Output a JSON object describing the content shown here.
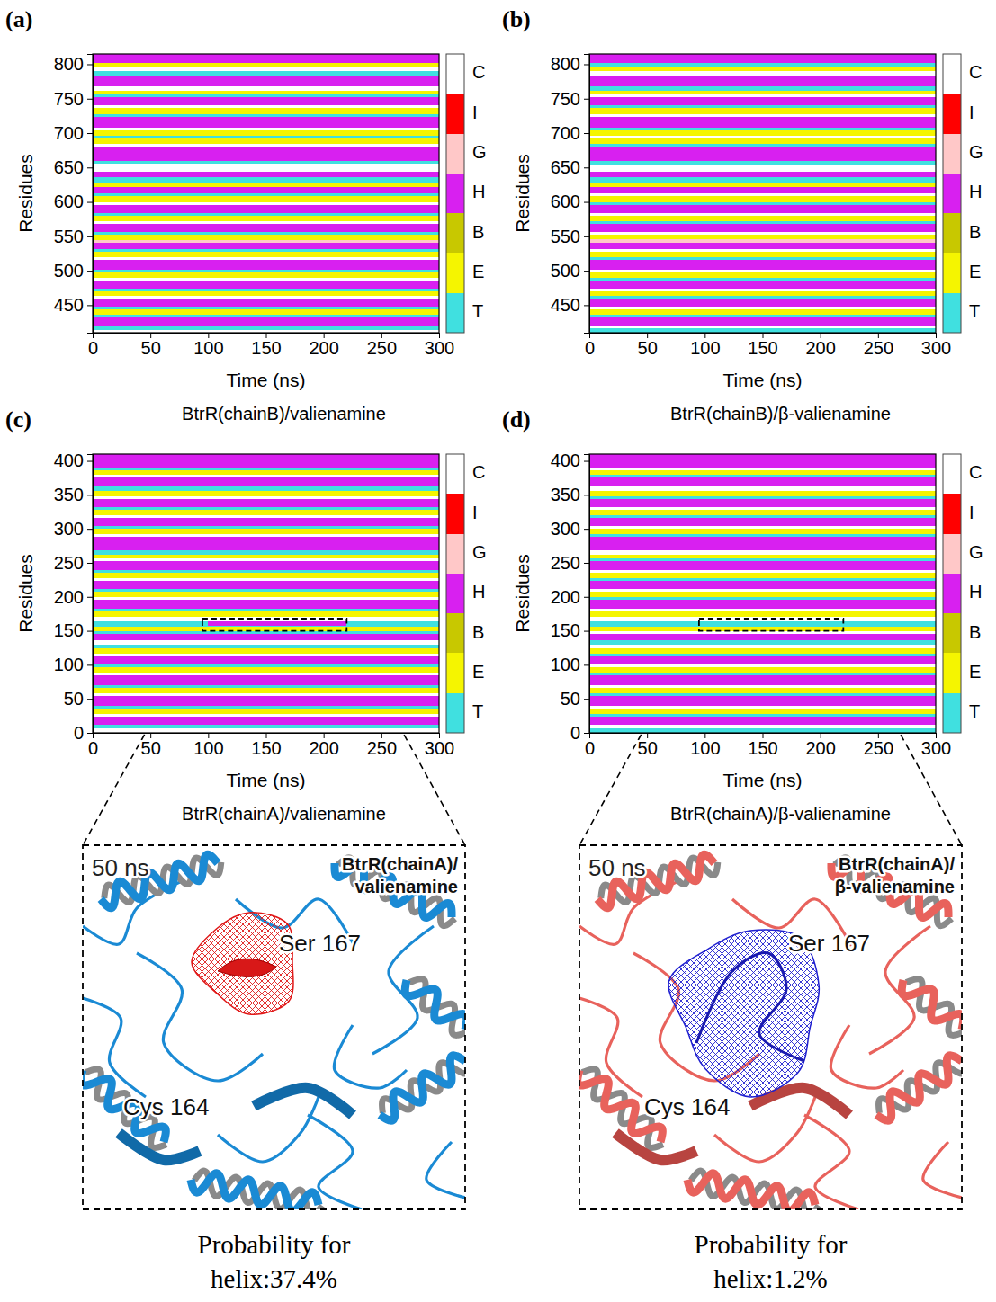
{
  "chart_data": [
    {
      "type": "heatmap",
      "panel": "(a)",
      "title": "BtrR(chainB)/valienamine",
      "x_label": "Time (ns)",
      "y_label": "Residues",
      "xlim": [
        0,
        300
      ],
      "xticks": [
        0,
        50,
        100,
        150,
        200,
        250,
        300
      ],
      "ylim": [
        410,
        815
      ],
      "yticks": [
        450,
        500,
        550,
        600,
        650,
        700,
        750,
        800
      ],
      "states": [
        "C",
        "I",
        "G",
        "H",
        "B",
        "E",
        "T"
      ],
      "colors": [
        "#ffffff",
        "#ff0000",
        "#ffc8c8",
        "#d820f0",
        "#c8c800",
        "#f5f500",
        "#40e0e0"
      ],
      "bands": [
        [
          410,
          414,
          "C"
        ],
        [
          414,
          420,
          "T"
        ],
        [
          420,
          432,
          "H"
        ],
        [
          432,
          436,
          "T"
        ],
        [
          436,
          444,
          "E"
        ],
        [
          444,
          448,
          "T"
        ],
        [
          448,
          460,
          "H"
        ],
        [
          460,
          464,
          "C"
        ],
        [
          464,
          470,
          "E"
        ],
        [
          470,
          474,
          "T"
        ],
        [
          474,
          486,
          "H"
        ],
        [
          486,
          490,
          "C"
        ],
        [
          490,
          498,
          "E"
        ],
        [
          498,
          502,
          "T"
        ],
        [
          502,
          516,
          "H"
        ],
        [
          516,
          520,
          "C"
        ],
        [
          520,
          528,
          "E"
        ],
        [
          528,
          532,
          "T"
        ],
        [
          532,
          540,
          "H"
        ],
        [
          540,
          544,
          "G"
        ],
        [
          544,
          552,
          "E"
        ],
        [
          552,
          556,
          "T"
        ],
        [
          556,
          568,
          "H"
        ],
        [
          568,
          572,
          "C"
        ],
        [
          572,
          580,
          "E"
        ],
        [
          580,
          584,
          "T"
        ],
        [
          584,
          596,
          "H"
        ],
        [
          596,
          600,
          "C"
        ],
        [
          600,
          608,
          "E"
        ],
        [
          608,
          612,
          "T"
        ],
        [
          612,
          622,
          "H"
        ],
        [
          622,
          628,
          "E"
        ],
        [
          628,
          636,
          "T"
        ],
        [
          636,
          644,
          "H"
        ],
        [
          644,
          656,
          "C"
        ],
        [
          656,
          660,
          "T"
        ],
        [
          660,
          680,
          "H"
        ],
        [
          680,
          684,
          "C"
        ],
        [
          684,
          692,
          "E"
        ],
        [
          692,
          696,
          "T"
        ],
        [
          696,
          704,
          "E"
        ],
        [
          704,
          708,
          "C"
        ],
        [
          708,
          724,
          "H"
        ],
        [
          724,
          728,
          "T"
        ],
        [
          728,
          736,
          "E"
        ],
        [
          736,
          740,
          "C"
        ],
        [
          740,
          752,
          "H"
        ],
        [
          752,
          756,
          "T"
        ],
        [
          756,
          762,
          "E"
        ],
        [
          762,
          768,
          "C"
        ],
        [
          768,
          784,
          "H"
        ],
        [
          784,
          790,
          "T"
        ],
        [
          790,
          796,
          "C"
        ],
        [
          796,
          802,
          "E"
        ],
        [
          802,
          815,
          "H"
        ]
      ],
      "events": []
    },
    {
      "type": "heatmap",
      "panel": "(b)",
      "title": "BtrR(chainB)/β-valienamine",
      "x_label": "Time (ns)",
      "y_label": "Residues",
      "xlim": [
        0,
        300
      ],
      "xticks": [
        0,
        50,
        100,
        150,
        200,
        250,
        300
      ],
      "ylim": [
        410,
        815
      ],
      "yticks": [
        450,
        500,
        550,
        600,
        650,
        700,
        750,
        800
      ],
      "states": [
        "C",
        "I",
        "G",
        "H",
        "B",
        "E",
        "T"
      ],
      "colors": [
        "#ffffff",
        "#ff0000",
        "#ffc8c8",
        "#d820f0",
        "#c8c800",
        "#f5f500",
        "#40e0e0"
      ],
      "bands": [
        [
          410,
          416,
          "T"
        ],
        [
          416,
          420,
          "C"
        ],
        [
          420,
          432,
          "H"
        ],
        [
          432,
          436,
          "T"
        ],
        [
          436,
          444,
          "E"
        ],
        [
          444,
          448,
          "C"
        ],
        [
          448,
          460,
          "H"
        ],
        [
          460,
          464,
          "T"
        ],
        [
          464,
          470,
          "E"
        ],
        [
          470,
          474,
          "C"
        ],
        [
          474,
          486,
          "H"
        ],
        [
          486,
          490,
          "T"
        ],
        [
          490,
          498,
          "E"
        ],
        [
          498,
          502,
          "C"
        ],
        [
          502,
          516,
          "H"
        ],
        [
          516,
          520,
          "T"
        ],
        [
          520,
          528,
          "E"
        ],
        [
          528,
          532,
          "C"
        ],
        [
          532,
          540,
          "H"
        ],
        [
          540,
          546,
          "G"
        ],
        [
          546,
          552,
          "E"
        ],
        [
          552,
          556,
          "C"
        ],
        [
          556,
          568,
          "H"
        ],
        [
          568,
          572,
          "T"
        ],
        [
          572,
          580,
          "E"
        ],
        [
          580,
          584,
          "C"
        ],
        [
          584,
          596,
          "H"
        ],
        [
          596,
          600,
          "T"
        ],
        [
          600,
          608,
          "E"
        ],
        [
          608,
          612,
          "C"
        ],
        [
          612,
          622,
          "H"
        ],
        [
          622,
          628,
          "E"
        ],
        [
          628,
          636,
          "T"
        ],
        [
          636,
          644,
          "H"
        ],
        [
          644,
          654,
          "C"
        ],
        [
          654,
          660,
          "T"
        ],
        [
          660,
          680,
          "H"
        ],
        [
          680,
          684,
          "T"
        ],
        [
          684,
          692,
          "E"
        ],
        [
          692,
          696,
          "C"
        ],
        [
          696,
          704,
          "E"
        ],
        [
          704,
          708,
          "T"
        ],
        [
          708,
          724,
          "H"
        ],
        [
          724,
          728,
          "C"
        ],
        [
          728,
          736,
          "E"
        ],
        [
          736,
          740,
          "T"
        ],
        [
          740,
          752,
          "H"
        ],
        [
          752,
          756,
          "C"
        ],
        [
          756,
          762,
          "E"
        ],
        [
          762,
          768,
          "T"
        ],
        [
          768,
          784,
          "H"
        ],
        [
          784,
          790,
          "C"
        ],
        [
          790,
          796,
          "E"
        ],
        [
          796,
          802,
          "T"
        ],
        [
          802,
          815,
          "H"
        ]
      ],
      "events": []
    },
    {
      "type": "heatmap",
      "panel": "(c)",
      "title": "BtrR(chainA)/valienamine",
      "x_label": "Time (ns)",
      "y_label": "Residues",
      "xlim": [
        0,
        300
      ],
      "xticks": [
        0,
        50,
        100,
        150,
        200,
        250,
        300
      ],
      "ylim": [
        0,
        410
      ],
      "yticks": [
        0,
        50,
        100,
        150,
        200,
        250,
        300,
        350,
        400
      ],
      "states": [
        "C",
        "I",
        "G",
        "H",
        "B",
        "E",
        "T"
      ],
      "colors": [
        "#ffffff",
        "#ff0000",
        "#ffc8c8",
        "#d820f0",
        "#c8c800",
        "#f5f500",
        "#40e0e0"
      ],
      "bands": [
        [
          0,
          6,
          "C"
        ],
        [
          6,
          12,
          "T"
        ],
        [
          12,
          24,
          "H"
        ],
        [
          24,
          28,
          "C"
        ],
        [
          28,
          36,
          "E"
        ],
        [
          36,
          40,
          "T"
        ],
        [
          40,
          54,
          "H"
        ],
        [
          54,
          58,
          "C"
        ],
        [
          58,
          66,
          "E"
        ],
        [
          66,
          70,
          "T"
        ],
        [
          70,
          84,
          "H"
        ],
        [
          84,
          88,
          "C"
        ],
        [
          88,
          96,
          "E"
        ],
        [
          96,
          100,
          "T"
        ],
        [
          100,
          112,
          "H"
        ],
        [
          112,
          116,
          "C"
        ],
        [
          116,
          124,
          "E"
        ],
        [
          124,
          130,
          "T"
        ],
        [
          130,
          136,
          "C"
        ],
        [
          136,
          146,
          "H"
        ],
        [
          146,
          150,
          "T"
        ],
        [
          150,
          156,
          "E"
        ],
        [
          156,
          164,
          "T"
        ],
        [
          164,
          170,
          "C"
        ],
        [
          170,
          178,
          "E"
        ],
        [
          178,
          182,
          "T"
        ],
        [
          182,
          196,
          "H"
        ],
        [
          196,
          200,
          "C"
        ],
        [
          200,
          208,
          "E"
        ],
        [
          208,
          212,
          "T"
        ],
        [
          212,
          224,
          "H"
        ],
        [
          224,
          228,
          "C"
        ],
        [
          228,
          236,
          "E"
        ],
        [
          236,
          240,
          "T"
        ],
        [
          240,
          252,
          "H"
        ],
        [
          252,
          256,
          "C"
        ],
        [
          256,
          262,
          "E"
        ],
        [
          262,
          268,
          "T"
        ],
        [
          268,
          288,
          "H"
        ],
        [
          288,
          292,
          "C"
        ],
        [
          292,
          300,
          "E"
        ],
        [
          300,
          304,
          "T"
        ],
        [
          304,
          316,
          "H"
        ],
        [
          316,
          320,
          "C"
        ],
        [
          320,
          328,
          "E"
        ],
        [
          328,
          332,
          "T"
        ],
        [
          332,
          344,
          "H"
        ],
        [
          344,
          348,
          "C"
        ],
        [
          348,
          356,
          "E"
        ],
        [
          356,
          362,
          "T"
        ],
        [
          362,
          376,
          "H"
        ],
        [
          376,
          380,
          "C"
        ],
        [
          380,
          386,
          "E"
        ],
        [
          386,
          390,
          "T"
        ],
        [
          390,
          410,
          "H"
        ]
      ],
      "events": [
        {
          "residues": [
            158,
            164
          ],
          "time": [
            100,
            220
          ],
          "state": "H"
        }
      ],
      "zoom": {
        "time": [
          95,
          220
        ],
        "residues": [
          150,
          168
        ]
      }
    },
    {
      "type": "heatmap",
      "panel": "(d)",
      "title": "BtrR(chainA)/β-valienamine",
      "x_label": "Time (ns)",
      "y_label": "Residues",
      "xlim": [
        0,
        300
      ],
      "xticks": [
        0,
        50,
        100,
        150,
        200,
        250,
        300
      ],
      "ylim": [
        0,
        410
      ],
      "yticks": [
        0,
        50,
        100,
        150,
        200,
        250,
        300,
        350,
        400
      ],
      "states": [
        "C",
        "I",
        "G",
        "H",
        "B",
        "E",
        "T"
      ],
      "colors": [
        "#ffffff",
        "#ff0000",
        "#ffc8c8",
        "#d820f0",
        "#c8c800",
        "#f5f500",
        "#40e0e0"
      ],
      "bands": [
        [
          0,
          6,
          "T"
        ],
        [
          6,
          12,
          "C"
        ],
        [
          12,
          24,
          "H"
        ],
        [
          24,
          28,
          "T"
        ],
        [
          28,
          36,
          "E"
        ],
        [
          36,
          40,
          "C"
        ],
        [
          40,
          54,
          "H"
        ],
        [
          54,
          58,
          "T"
        ],
        [
          58,
          66,
          "E"
        ],
        [
          66,
          70,
          "C"
        ],
        [
          70,
          84,
          "H"
        ],
        [
          84,
          88,
          "T"
        ],
        [
          88,
          96,
          "E"
        ],
        [
          96,
          100,
          "C"
        ],
        [
          100,
          112,
          "H"
        ],
        [
          112,
          116,
          "T"
        ],
        [
          116,
          124,
          "E"
        ],
        [
          124,
          130,
          "C"
        ],
        [
          130,
          136,
          "T"
        ],
        [
          136,
          146,
          "H"
        ],
        [
          146,
          150,
          "C"
        ],
        [
          150,
          156,
          "E"
        ],
        [
          156,
          164,
          "T"
        ],
        [
          164,
          170,
          "C"
        ],
        [
          170,
          178,
          "E"
        ],
        [
          178,
          182,
          "C"
        ],
        [
          182,
          196,
          "H"
        ],
        [
          196,
          200,
          "T"
        ],
        [
          200,
          208,
          "E"
        ],
        [
          208,
          212,
          "C"
        ],
        [
          212,
          224,
          "H"
        ],
        [
          224,
          228,
          "T"
        ],
        [
          228,
          236,
          "E"
        ],
        [
          236,
          240,
          "C"
        ],
        [
          240,
          252,
          "H"
        ],
        [
          252,
          256,
          "T"
        ],
        [
          256,
          262,
          "E"
        ],
        [
          262,
          268,
          "C"
        ],
        [
          268,
          288,
          "H"
        ],
        [
          288,
          292,
          "T"
        ],
        [
          292,
          300,
          "E"
        ],
        [
          300,
          304,
          "C"
        ],
        [
          304,
          316,
          "H"
        ],
        [
          316,
          320,
          "T"
        ],
        [
          320,
          328,
          "E"
        ],
        [
          328,
          332,
          "C"
        ],
        [
          332,
          344,
          "H"
        ],
        [
          344,
          348,
          "T"
        ],
        [
          348,
          356,
          "E"
        ],
        [
          356,
          362,
          "C"
        ],
        [
          362,
          376,
          "H"
        ],
        [
          376,
          380,
          "T"
        ],
        [
          380,
          386,
          "E"
        ],
        [
          386,
          390,
          "C"
        ],
        [
          390,
          410,
          "H"
        ]
      ],
      "events": [
        {
          "residues": [
            158,
            164
          ],
          "time": [
            100,
            220
          ],
          "state": "T"
        }
      ],
      "zoom": {
        "time": [
          95,
          220
        ],
        "residues": [
          150,
          168
        ]
      }
    }
  ],
  "insets": [
    {
      "time_label": "50 ns",
      "title": "BtrR(chainA)/valienamine",
      "residue_labels": [
        "Ser 167",
        "Cys 164"
      ],
      "probability": [
        "Probability for",
        "helix:37.4%"
      ]
    },
    {
      "time_label": "50 ns",
      "title": "BtrR(chainA)/β-valienamine",
      "residue_labels": [
        "Ser 167",
        "Cys 164"
      ],
      "probability": [
        "Probability for",
        "helix:1.2%"
      ]
    }
  ]
}
